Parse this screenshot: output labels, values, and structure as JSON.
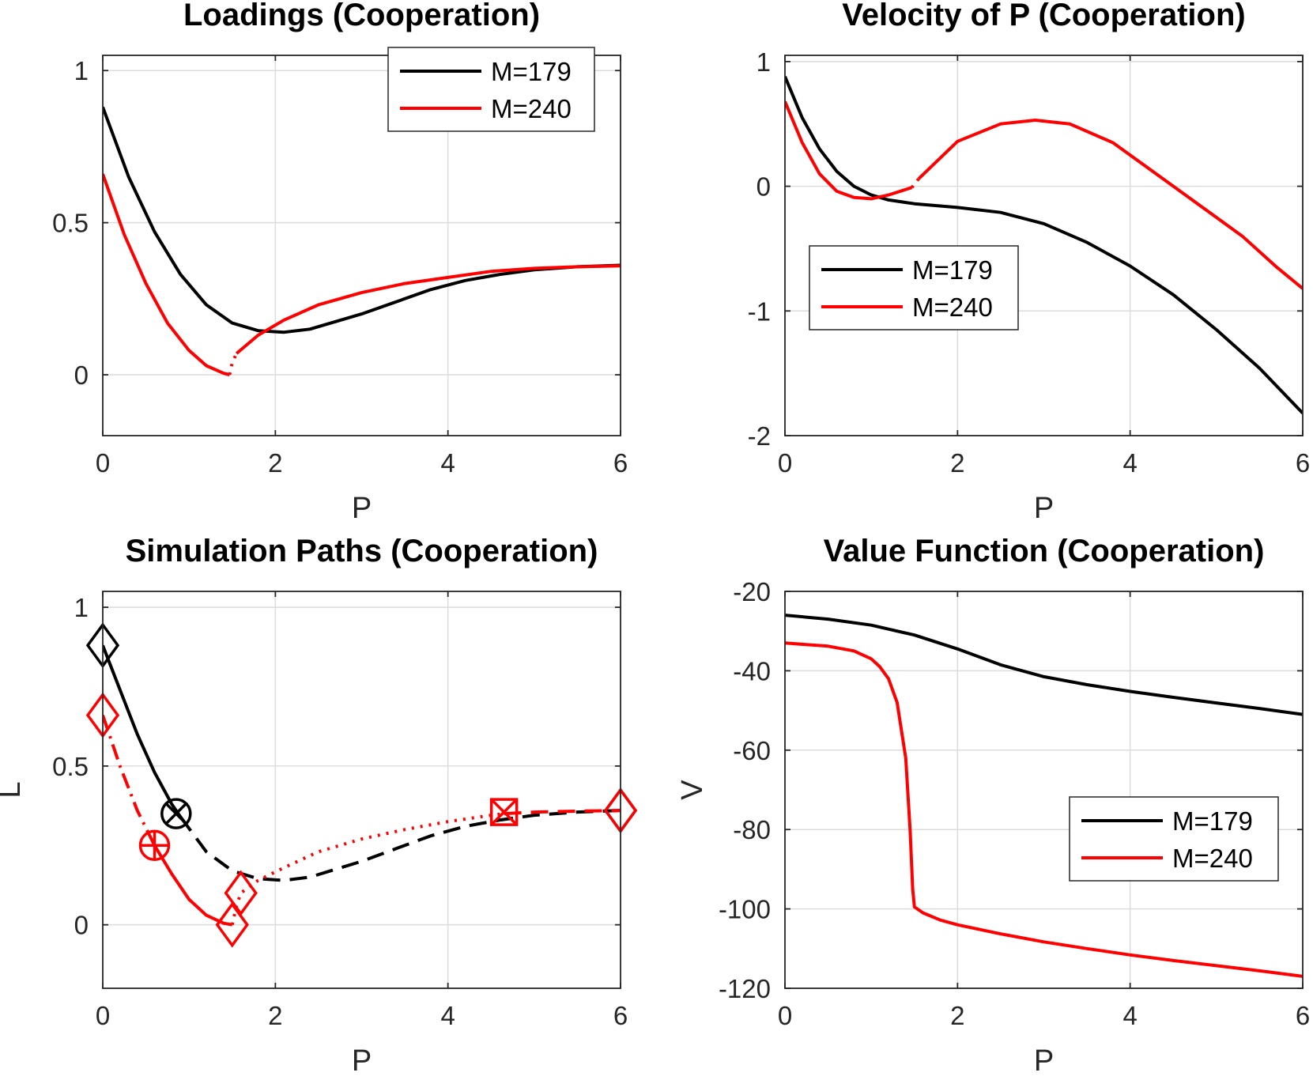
{
  "colors": {
    "m179": "#000000",
    "m240": "#ff0000"
  },
  "chart_data": [
    {
      "type": "line",
      "title": "Loadings (Cooperation)",
      "xlabel": "P",
      "ylabel": "",
      "xlim": [
        0,
        6
      ],
      "ylim": [
        -0.2,
        1.05
      ],
      "xticks": [
        0,
        2,
        4,
        6
      ],
      "yticks": [
        0,
        0.5,
        1
      ],
      "grid": true,
      "legend_position": "top-right",
      "series": [
        {
          "name": "M=179",
          "color": "#000000",
          "segments": [
            {
              "style": "solid",
              "x": [
                0,
                0.3,
                0.6,
                0.9,
                1.2,
                1.5,
                1.8,
                2.1,
                2.4,
                2.7,
                3.0,
                3.4,
                3.8,
                4.2,
                4.6,
                5.0,
                5.5,
                6.0
              ],
              "y": [
                0.88,
                0.65,
                0.47,
                0.33,
                0.23,
                0.17,
                0.145,
                0.14,
                0.15,
                0.175,
                0.2,
                0.24,
                0.28,
                0.31,
                0.33,
                0.345,
                0.355,
                0.36
              ]
            }
          ]
        },
        {
          "name": "M=240",
          "color": "#ff0000",
          "segments": [
            {
              "style": "solid",
              "x": [
                0,
                0.25,
                0.5,
                0.75,
                1.0,
                1.2,
                1.4,
                1.47
              ],
              "y": [
                0.66,
                0.46,
                0.3,
                0.17,
                0.08,
                0.03,
                0.005,
                0.0
              ]
            },
            {
              "style": "dotted",
              "x": [
                1.47,
                1.5,
                1.55
              ],
              "y": [
                0.0,
                0.04,
                0.07
              ]
            },
            {
              "style": "solid",
              "x": [
                1.55,
                1.8,
                2.1,
                2.5,
                3.0,
                3.5,
                4.0,
                4.5,
                5.0,
                5.5,
                6.0
              ],
              "y": [
                0.07,
                0.13,
                0.18,
                0.23,
                0.27,
                0.3,
                0.32,
                0.34,
                0.35,
                0.355,
                0.358
              ]
            }
          ]
        }
      ]
    },
    {
      "type": "line",
      "title": "Velocity of P (Cooperation)",
      "xlabel": "P",
      "ylabel": "",
      "xlim": [
        0,
        6
      ],
      "ylim": [
        -2,
        1.05
      ],
      "xticks": [
        0,
        2,
        4,
        6
      ],
      "yticks": [
        -2,
        -1,
        0,
        1
      ],
      "grid": true,
      "legend_position": "center-left",
      "series": [
        {
          "name": "M=179",
          "color": "#000000",
          "segments": [
            {
              "style": "solid",
              "x": [
                0,
                0.2,
                0.4,
                0.6,
                0.8,
                1.0,
                1.2,
                1.5,
                2.0,
                2.5,
                3.0,
                3.5,
                4.0,
                4.5,
                5.0,
                5.5,
                6.0
              ],
              "y": [
                0.88,
                0.55,
                0.3,
                0.12,
                0.0,
                -0.07,
                -0.11,
                -0.14,
                -0.17,
                -0.21,
                -0.3,
                -0.45,
                -0.64,
                -0.87,
                -1.15,
                -1.46,
                -1.82
              ]
            }
          ]
        },
        {
          "name": "M=240",
          "color": "#ff0000",
          "segments": [
            {
              "style": "solid",
              "x": [
                0,
                0.2,
                0.4,
                0.6,
                0.8,
                1.0,
                1.2,
                1.47
              ],
              "y": [
                0.68,
                0.35,
                0.1,
                -0.04,
                -0.09,
                -0.1,
                -0.07,
                -0.01
              ]
            },
            {
              "style": "dotted",
              "x": [
                1.47,
                1.55
              ],
              "y": [
                -0.01,
                0.06
              ]
            },
            {
              "style": "solid",
              "x": [
                1.55,
                2.0,
                2.5,
                2.9,
                3.3,
                3.8,
                4.3,
                4.8,
                5.3,
                5.7,
                6.0
              ],
              "y": [
                0.06,
                0.36,
                0.5,
                0.53,
                0.5,
                0.35,
                0.1,
                -0.15,
                -0.4,
                -0.65,
                -0.82
              ]
            }
          ]
        }
      ]
    },
    {
      "type": "line",
      "title": "Simulation Paths (Cooperation)",
      "xlabel": "P",
      "ylabel": "L",
      "xlim": [
        0,
        6
      ],
      "ylim": [
        -0.2,
        1.05
      ],
      "xticks": [
        0,
        2,
        4,
        6
      ],
      "yticks": [
        0,
        0.5,
        1
      ],
      "grid": true,
      "series": [
        {
          "name": "",
          "color": "#000000",
          "segments": [
            {
              "style": "solid",
              "x": [
                0,
                0.2,
                0.4,
                0.6,
                0.8,
                0.9
              ],
              "y": [
                0.88,
                0.74,
                0.6,
                0.48,
                0.38,
                0.34
              ]
            },
            {
              "style": "dashed",
              "x": [
                0.9,
                1.2,
                1.5,
                1.8,
                2.1,
                2.4,
                2.7,
                3.0,
                3.4,
                3.8,
                4.2,
                4.6,
                5.0,
                5.5,
                6.0
              ],
              "y": [
                0.34,
                0.23,
                0.17,
                0.145,
                0.14,
                0.15,
                0.175,
                0.2,
                0.24,
                0.28,
                0.31,
                0.33,
                0.345,
                0.355,
                0.36
              ]
            }
          ],
          "markers": [
            {
              "x": 0,
              "y": 0.88,
              "symbol": "diamond"
            },
            {
              "x": 0.85,
              "y": 0.35,
              "symbol": "circle-x"
            },
            {
              "x": 6.0,
              "y": 0.36,
              "symbol": "diamond"
            }
          ]
        },
        {
          "name": "",
          "color": "#ff0000",
          "segments": [
            {
              "style": "dashdot",
              "x": [
                0,
                0.2,
                0.4,
                0.6
              ],
              "y": [
                0.66,
                0.5,
                0.36,
                0.25
              ]
            },
            {
              "style": "solid",
              "x": [
                0.6,
                0.8,
                1.0,
                1.2,
                1.4,
                1.5
              ],
              "y": [
                0.25,
                0.16,
                0.08,
                0.03,
                0.005,
                0.0
              ]
            },
            {
              "style": "dotted",
              "x": [
                1.5,
                1.55,
                1.6,
                1.8,
                2.1,
                2.5,
                3.0,
                3.5,
                4.0,
                4.5,
                4.65
              ],
              "y": [
                0.0,
                0.06,
                0.1,
                0.14,
                0.18,
                0.23,
                0.27,
                0.3,
                0.325,
                0.345,
                0.35
              ]
            },
            {
              "style": "dashed",
              "x": [
                4.65,
                5.0,
                5.5,
                6.0
              ],
              "y": [
                0.35,
                0.355,
                0.358,
                0.36
              ]
            }
          ],
          "markers": [
            {
              "x": 0,
              "y": 0.66,
              "symbol": "diamond"
            },
            {
              "x": 0.6,
              "y": 0.25,
              "symbol": "circle-plus"
            },
            {
              "x": 1.5,
              "y": 0.0,
              "symbol": "diamond"
            },
            {
              "x": 1.6,
              "y": 0.1,
              "symbol": "diamond"
            },
            {
              "x": 4.65,
              "y": 0.355,
              "symbol": "square-x"
            },
            {
              "x": 6.0,
              "y": 0.36,
              "symbol": "diamond"
            }
          ]
        }
      ]
    },
    {
      "type": "line",
      "title": "Value Function (Cooperation)",
      "xlabel": "P",
      "ylabel": "V",
      "xlim": [
        0,
        6
      ],
      "ylim": [
        -120,
        -20
      ],
      "xticks": [
        0,
        2,
        4,
        6
      ],
      "yticks": [
        -120,
        -100,
        -80,
        -60,
        -40,
        -20
      ],
      "grid": true,
      "legend_position": "bottom-right",
      "series": [
        {
          "name": "M=179",
          "color": "#000000",
          "segments": [
            {
              "style": "solid",
              "x": [
                0,
                0.5,
                1.0,
                1.5,
                2.0,
                2.5,
                3.0,
                3.5,
                4.0,
                4.5,
                5.0,
                5.5,
                6.0
              ],
              "y": [
                -26,
                -27,
                -28.5,
                -31,
                -34.5,
                -38.5,
                -41.5,
                -43.5,
                -45.2,
                -46.7,
                -48.1,
                -49.5,
                -51
              ]
            }
          ]
        },
        {
          "name": "M=240",
          "color": "#ff0000",
          "segments": [
            {
              "style": "solid",
              "x": [
                0,
                0.5,
                0.8,
                1.0,
                1.1,
                1.2,
                1.3,
                1.4,
                1.45,
                1.48,
                1.5,
                1.6,
                1.8,
                2.0,
                2.5,
                3.0,
                3.5,
                4.0,
                4.5,
                5.0,
                5.5,
                6.0
              ],
              "y": [
                -33,
                -33.8,
                -35,
                -37,
                -39,
                -42,
                -48,
                -62,
                -80,
                -95,
                -99.5,
                -101,
                -102.8,
                -104,
                -106.3,
                -108.3,
                -110,
                -111.6,
                -113,
                -114.3,
                -115.6,
                -117
              ]
            }
          ]
        }
      ]
    }
  ]
}
